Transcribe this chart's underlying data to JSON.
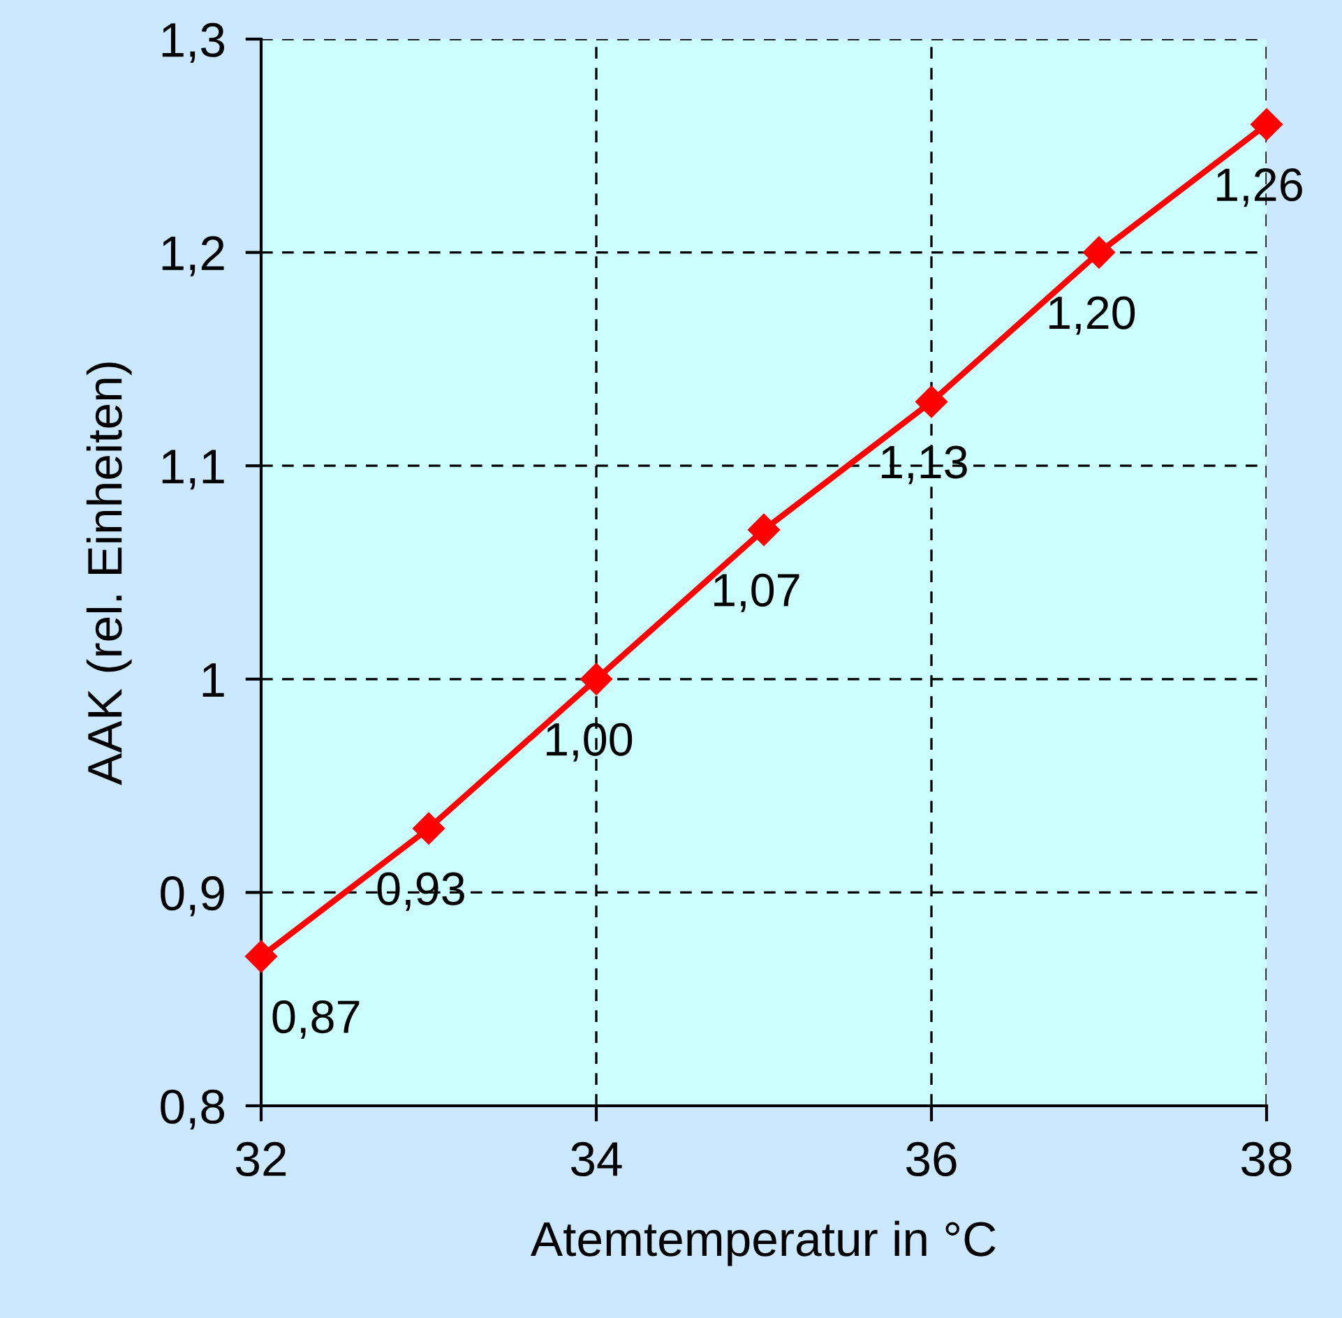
{
  "chart_data": {
    "type": "line",
    "xlabel": "Atemtemperatur in °C",
    "ylabel": "AAK (rel. Einheiten)",
    "x": [
      32,
      33,
      34,
      35,
      36,
      37,
      38
    ],
    "series": [
      {
        "color": "#ff0000",
        "values": [
          0.87,
          0.93,
          1.0,
          1.07,
          1.13,
          1.2,
          1.26
        ],
        "value_labels": [
          "0,87",
          "0,93",
          "1,00",
          "1,07",
          "1,13",
          "1,20",
          "1,26"
        ]
      }
    ],
    "xlim": [
      32,
      38
    ],
    "xticks": [
      32,
      34,
      36,
      38
    ],
    "ylim": [
      0.8,
      1.3
    ],
    "yticks": [
      {
        "value": 0.8,
        "label": "0,8"
      },
      {
        "value": 0.9,
        "label": "0,9"
      },
      1,
      {
        "value": 1.1,
        "label": "1,1"
      },
      {
        "value": 1.2,
        "label": "1,2"
      },
      {
        "value": 1.3,
        "label": "1,3"
      }
    ],
    "grid": true,
    "marker": "diamond",
    "line_style": "solid",
    "legend": false
  }
}
